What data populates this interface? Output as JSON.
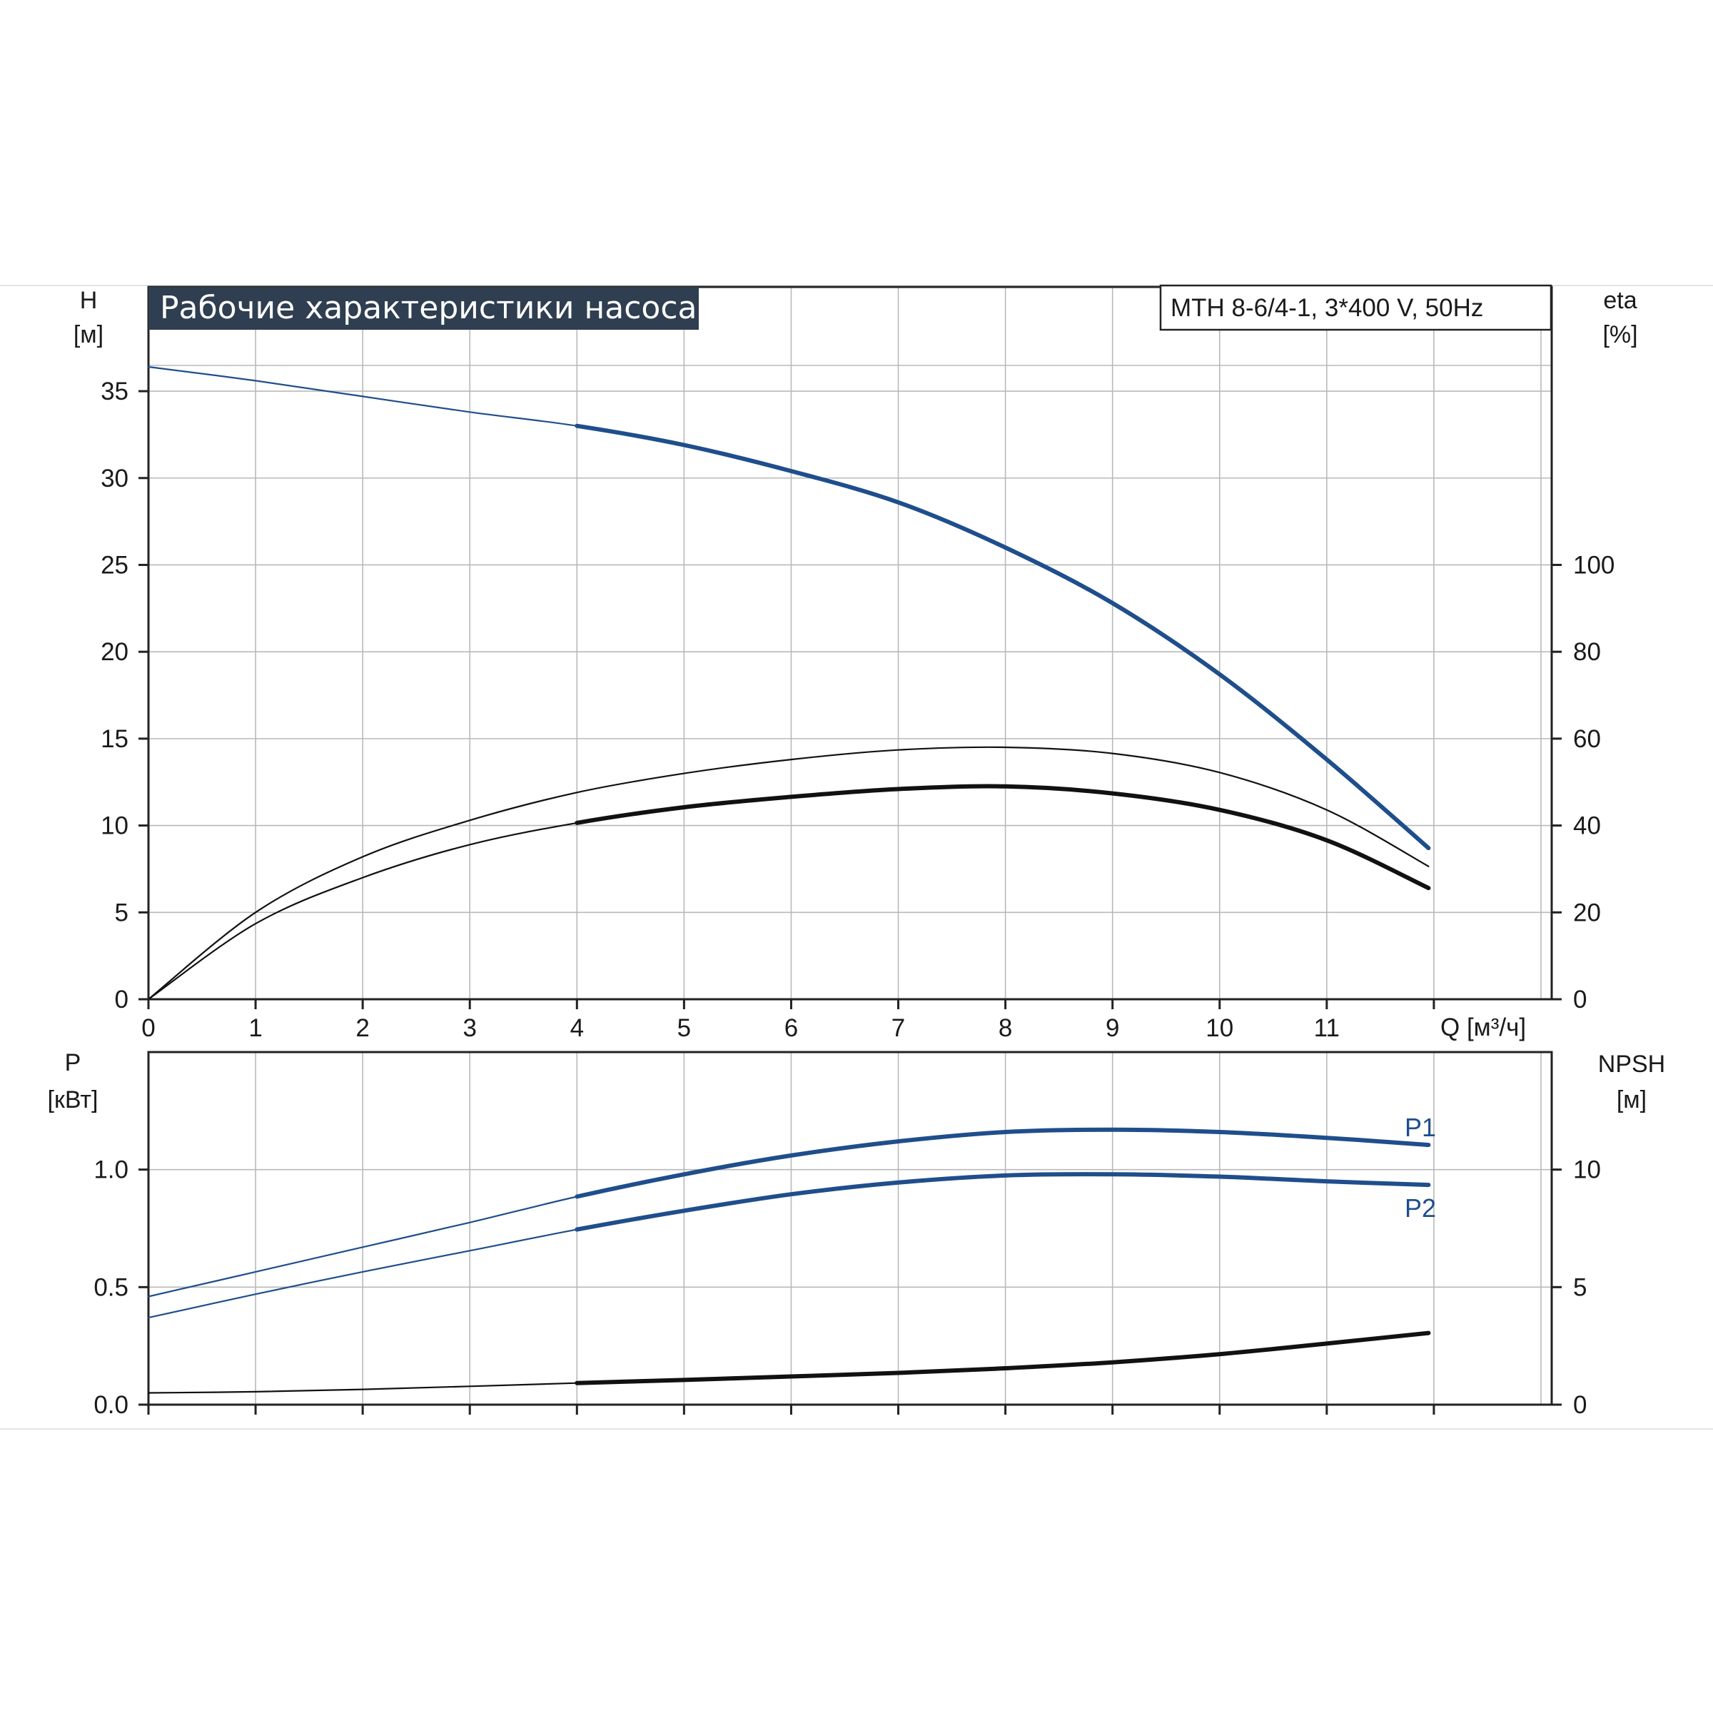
{
  "title": "Рабочие характеристики насоса",
  "model": "MTH 8-6/4-1, 3*400 V, 50Hz",
  "colors": {
    "blue": "#1f4e8c",
    "black": "#111111",
    "title_bg": "#2f3e50",
    "grid": "#b9b9b9"
  },
  "chart_data": [
    {
      "type": "line",
      "name": "top-panel",
      "x_unit_label": "Q [м³/ч]",
      "left_axis": {
        "label": "H",
        "unit": "[м]",
        "ticks": [
          0,
          5,
          10,
          15,
          20,
          25,
          30,
          35
        ],
        "range": [
          0,
          41
        ]
      },
      "right_axis": {
        "label": "eta",
        "unit": "[%]",
        "ticks": [
          0,
          20,
          40,
          60,
          80,
          100
        ],
        "range": [
          0,
          164
        ]
      },
      "x_ticks": [
        0,
        1,
        2,
        3,
        4,
        5,
        6,
        7,
        8,
        9,
        10,
        11
      ],
      "x_range": [
        0,
        13.1
      ],
      "grid": true,
      "series": [
        {
          "name": "H",
          "axis": "left",
          "color": "#1f4e8c",
          "x": [
            0,
            1,
            2,
            3,
            4,
            5,
            6,
            7,
            8,
            9,
            10,
            11,
            11.95
          ],
          "y": [
            36.4,
            35.6,
            34.7,
            33.8,
            33.0,
            31.9,
            30.4,
            28.6,
            26.0,
            22.8,
            18.7,
            13.8,
            8.7
          ],
          "bold_from": 4
        },
        {
          "name": "eta",
          "axis": "right",
          "color": "#111111",
          "x": [
            0,
            1,
            2,
            3,
            4,
            5,
            6,
            7,
            8,
            9,
            10,
            11,
            11.95
          ],
          "y": [
            0,
            20,
            32.8,
            41.2,
            47.6,
            52.0,
            55.2,
            57.4,
            58.0,
            56.6,
            52.2,
            43.6,
            30.6
          ],
          "bold_from": 99
        },
        {
          "name": "eta-bold",
          "axis": "right",
          "color": "#111111",
          "x": [
            0,
            1,
            2,
            3,
            4,
            5,
            6,
            7,
            8,
            9,
            10,
            11,
            11.95
          ],
          "y": [
            0,
            17.4,
            28.0,
            35.6,
            40.6,
            44.2,
            46.6,
            48.4,
            49.0,
            47.4,
            43.6,
            36.6,
            25.6
          ],
          "bold_from": 4
        }
      ]
    },
    {
      "type": "line",
      "name": "bottom-panel",
      "left_axis": {
        "label": "P",
        "unit": "[кВт]",
        "ticks": [
          "0.0",
          "0.5",
          "1.0"
        ],
        "range": [
          0,
          1.5
        ]
      },
      "right_axis": {
        "label": "NPSH",
        "unit": "[м]",
        "ticks": [
          0,
          5,
          10
        ],
        "range": [
          0,
          15
        ]
      },
      "x_range": [
        0,
        13.1
      ],
      "grid": true,
      "series": [
        {
          "name": "P1",
          "axis": "left",
          "color": "#1f4e8c",
          "x": [
            0,
            1,
            2,
            3,
            4,
            5,
            6,
            7,
            8,
            9,
            10,
            11,
            11.95
          ],
          "y": [
            0.46,
            0.565,
            0.67,
            0.775,
            0.885,
            0.98,
            1.06,
            1.12,
            1.16,
            1.17,
            1.16,
            1.135,
            1.105
          ],
          "bold_from": 4
        },
        {
          "name": "P2",
          "axis": "left",
          "color": "#1f4e8c",
          "x": [
            0,
            1,
            2,
            3,
            4,
            5,
            6,
            7,
            8,
            9,
            10,
            11,
            11.95
          ],
          "y": [
            0.37,
            0.47,
            0.565,
            0.655,
            0.745,
            0.825,
            0.895,
            0.945,
            0.975,
            0.98,
            0.97,
            0.95,
            0.935
          ],
          "bold_from": 4
        },
        {
          "name": "NPSH",
          "axis": "right",
          "color": "#111111",
          "x": [
            0,
            1,
            2,
            3,
            4,
            5,
            6,
            7,
            8,
            9,
            10,
            11,
            11.95
          ],
          "y": [
            0.5,
            0.55,
            0.65,
            0.78,
            0.92,
            1.05,
            1.2,
            1.35,
            1.55,
            1.8,
            2.15,
            2.6,
            3.05
          ],
          "bold_from": 4
        }
      ]
    }
  ]
}
